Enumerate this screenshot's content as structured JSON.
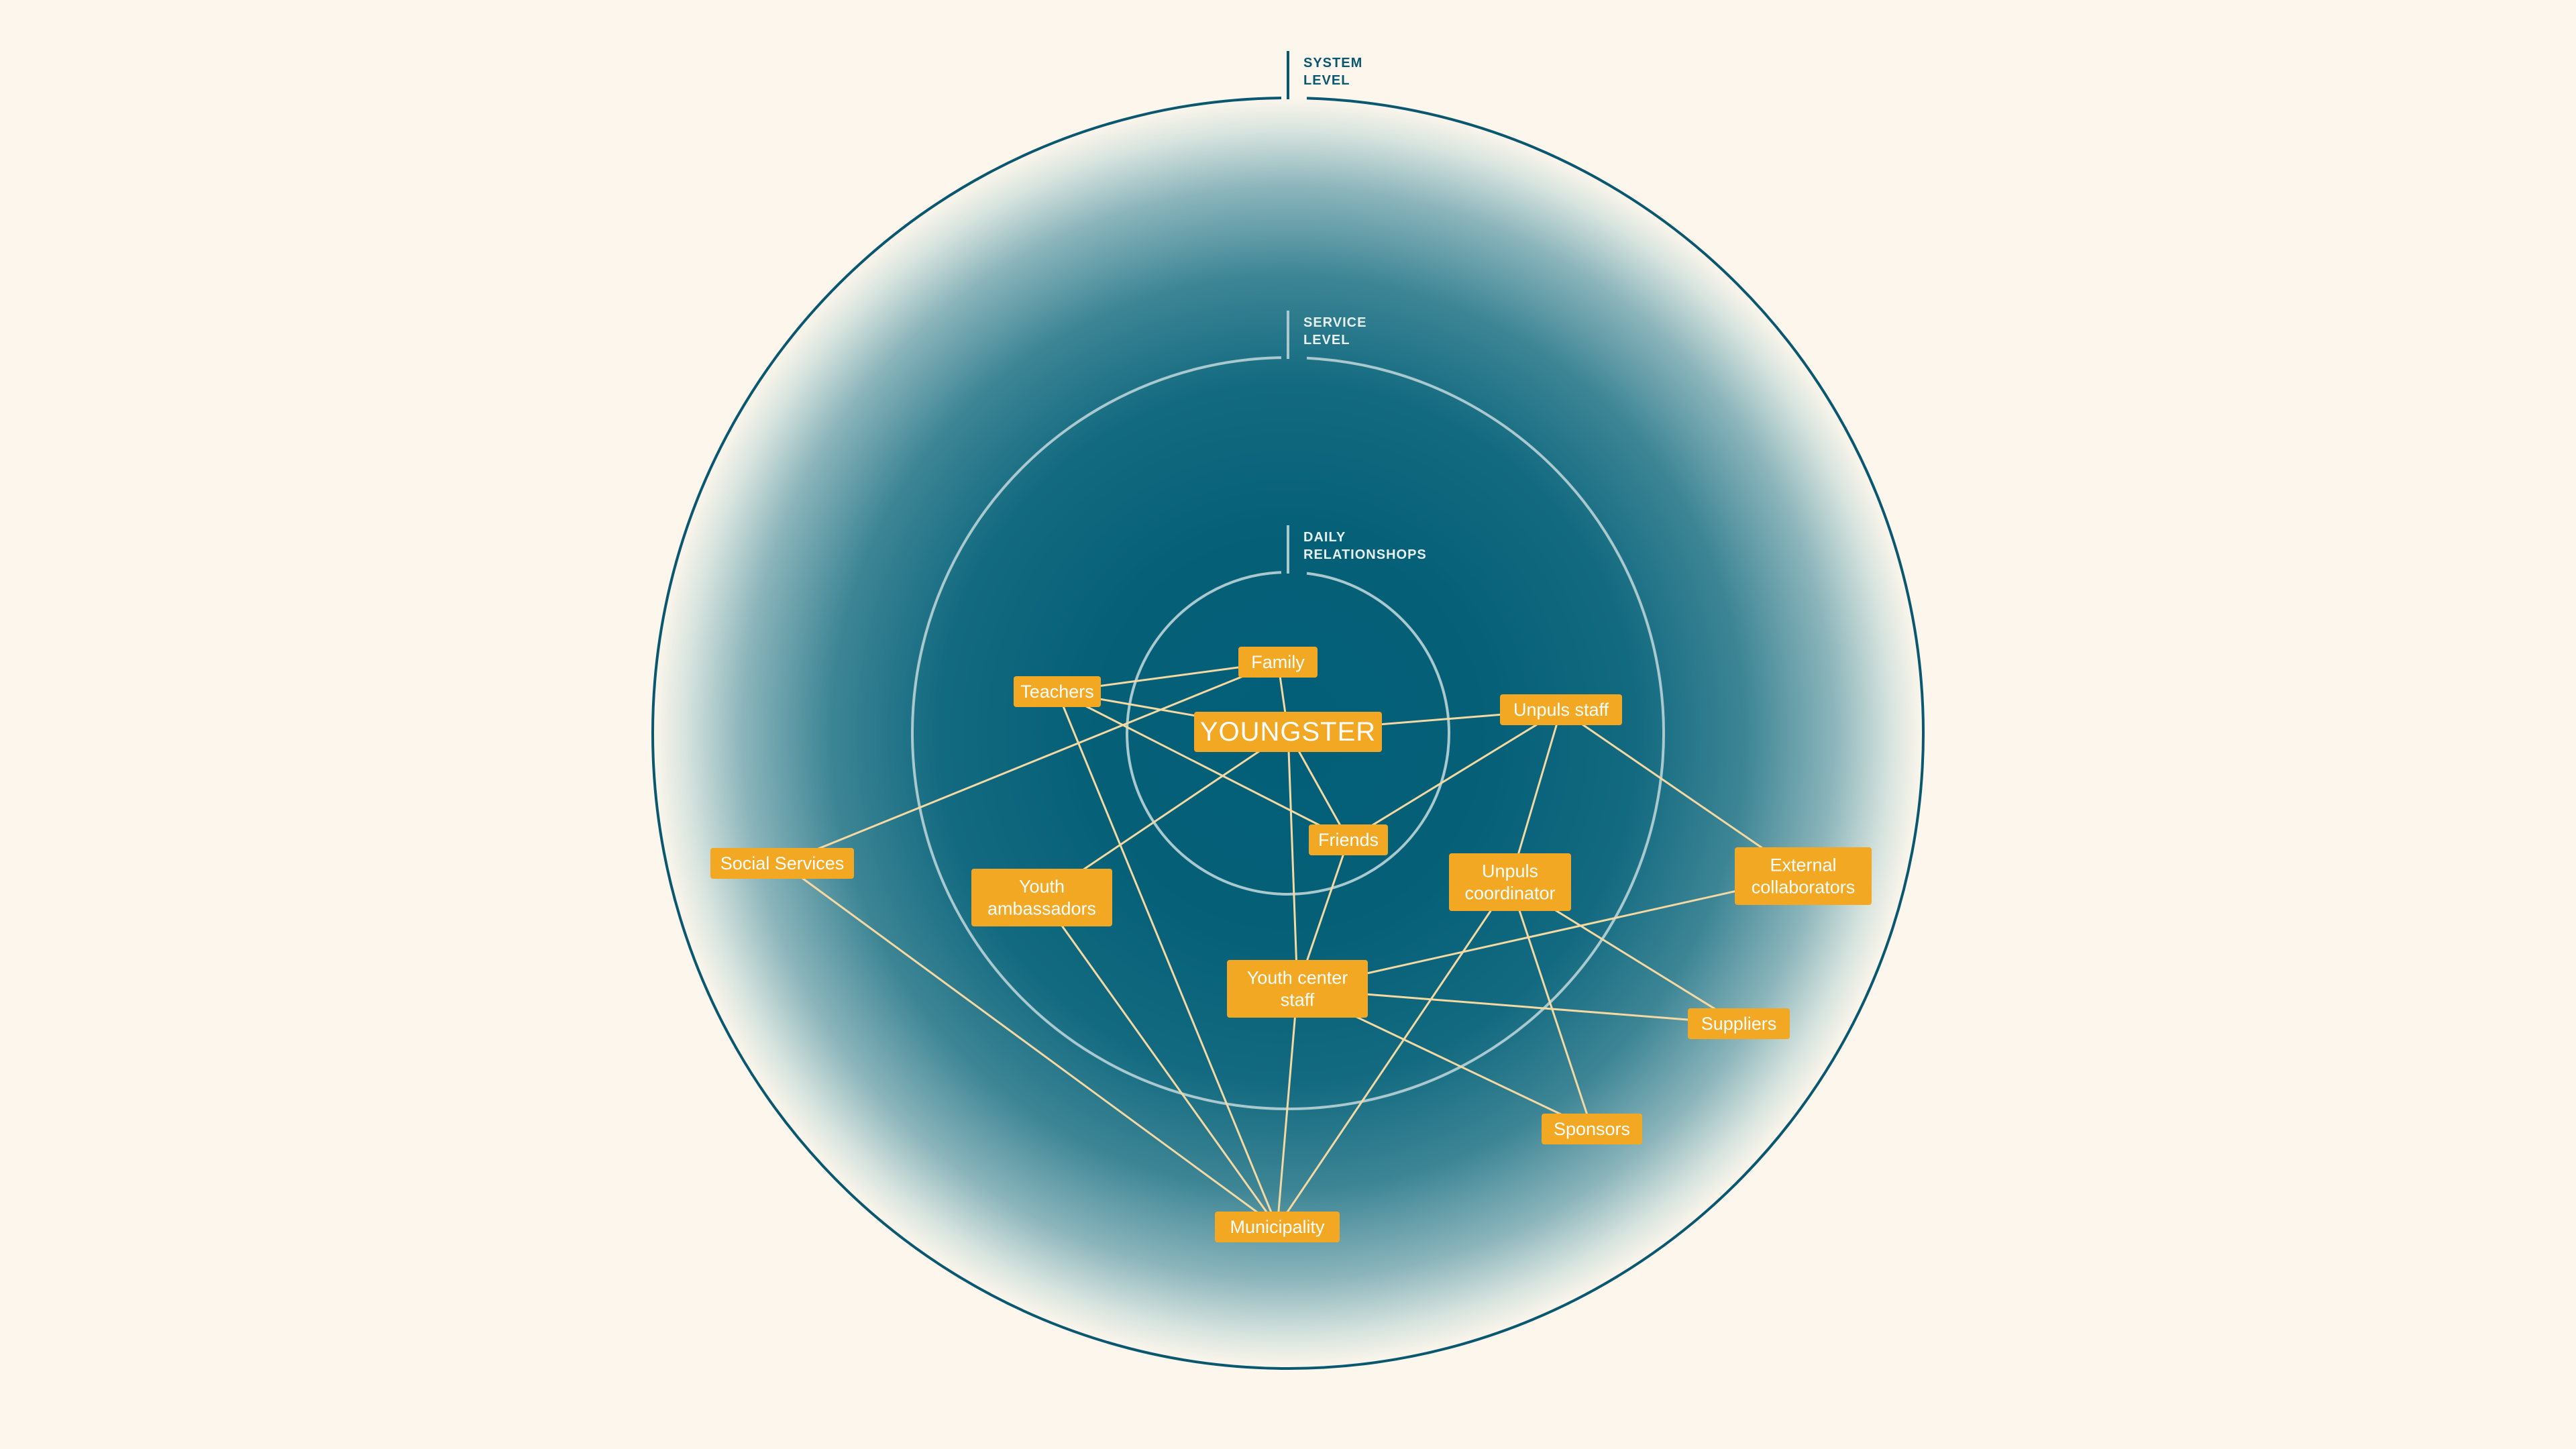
{
  "colors": {
    "background": "#fcf6ec",
    "core": "#035f78",
    "outer_ring": "#0a5770",
    "inner_rings": "#a9c9cf",
    "node_fill": "#f3a823",
    "edge": "#f5d9a2",
    "node_text": "#ffffff"
  },
  "levels": [
    {
      "id": "system",
      "lines": [
        "SYSTEM",
        "LEVEL"
      ]
    },
    {
      "id": "service",
      "lines": [
        "SERVICE",
        "LEVEL"
      ]
    },
    {
      "id": "daily",
      "lines": [
        "DAILY",
        "RELATIONSHOPS"
      ]
    }
  ],
  "nodes": [
    {
      "id": "youngster",
      "lines": [
        "YOUNGSTER"
      ]
    },
    {
      "id": "family",
      "lines": [
        "Family"
      ]
    },
    {
      "id": "teachers",
      "lines": [
        "Teachers"
      ]
    },
    {
      "id": "unpuls_staff",
      "lines": [
        "Unpuls staff"
      ]
    },
    {
      "id": "friends",
      "lines": [
        "Friends"
      ]
    },
    {
      "id": "social_services",
      "lines": [
        "Social Services"
      ]
    },
    {
      "id": "youth_ambassadors",
      "lines": [
        "Youth",
        "ambassadors"
      ]
    },
    {
      "id": "unpuls_coordinator",
      "lines": [
        "Unpuls",
        "coordinator"
      ]
    },
    {
      "id": "external_collaborators",
      "lines": [
        "External",
        "collaborators"
      ]
    },
    {
      "id": "youth_center_staff",
      "lines": [
        "Youth center",
        "staff"
      ]
    },
    {
      "id": "suppliers",
      "lines": [
        "Suppliers"
      ]
    },
    {
      "id": "sponsors",
      "lines": [
        "Sponsors"
      ]
    },
    {
      "id": "municipality",
      "lines": [
        "Municipality"
      ]
    }
  ],
  "edges": [
    [
      "teachers",
      "family"
    ],
    [
      "teachers",
      "youngster"
    ],
    [
      "teachers",
      "friends"
    ],
    [
      "teachers",
      "municipality"
    ],
    [
      "family",
      "youngster"
    ],
    [
      "family",
      "social_services"
    ],
    [
      "youngster",
      "unpuls_staff"
    ],
    [
      "youngster",
      "friends"
    ],
    [
      "youngster",
      "youth_ambassadors"
    ],
    [
      "youngster",
      "youth_center_staff"
    ],
    [
      "unpuls_staff",
      "friends"
    ],
    [
      "unpuls_staff",
      "unpuls_coordinator"
    ],
    [
      "unpuls_staff",
      "external_collaborators"
    ],
    [
      "friends",
      "youth_center_staff"
    ],
    [
      "social_services",
      "municipality"
    ],
    [
      "youth_ambassadors",
      "municipality"
    ],
    [
      "youth_center_staff",
      "municipality"
    ],
    [
      "youth_center_staff",
      "external_collaborators"
    ],
    [
      "youth_center_staff",
      "suppliers"
    ],
    [
      "youth_center_staff",
      "sponsors"
    ],
    [
      "unpuls_coordinator",
      "municipality"
    ],
    [
      "unpuls_coordinator",
      "suppliers"
    ],
    [
      "unpuls_coordinator",
      "sponsors"
    ]
  ]
}
